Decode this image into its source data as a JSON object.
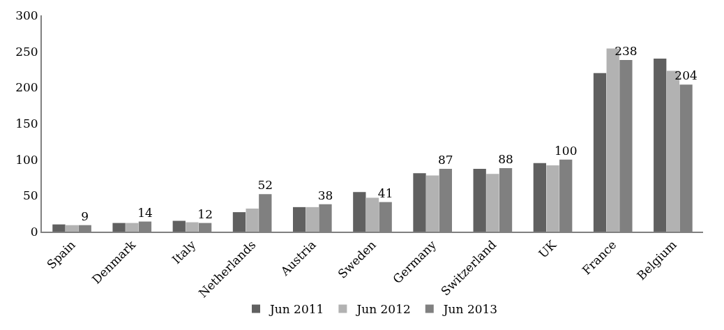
{
  "chart_data": {
    "type": "bar",
    "categories": [
      "Spain",
      "Denmark",
      "Italy",
      "Netherlands",
      "Austria",
      "Sweden",
      "Germany",
      "Switzerland",
      "UK",
      "France",
      "Belgium"
    ],
    "series": [
      {
        "name": "Jun 2011",
        "color": "#606060",
        "values": [
          10,
          12,
          15,
          27,
          34,
          55,
          81,
          87,
          95,
          220,
          240
        ]
      },
      {
        "name": "Jun 2012",
        "color": "#b2b2b2",
        "values": [
          9,
          12,
          13,
          32,
          34,
          47,
          78,
          80,
          92,
          254,
          223
        ]
      },
      {
        "name": "Jun 2013",
        "color": "#808080",
        "values": [
          9,
          14,
          12,
          52,
          38,
          41,
          87,
          88,
          100,
          238,
          204
        ],
        "value_labels": [
          "9",
          "14",
          "12",
          "52",
          "38",
          "41",
          "87",
          "88",
          "100",
          "238",
          "204"
        ]
      }
    ],
    "ylim": [
      0,
      300
    ],
    "yticks": [
      0,
      50,
      100,
      150,
      200,
      250,
      300
    ],
    "grid": false,
    "legend": "bottom"
  }
}
